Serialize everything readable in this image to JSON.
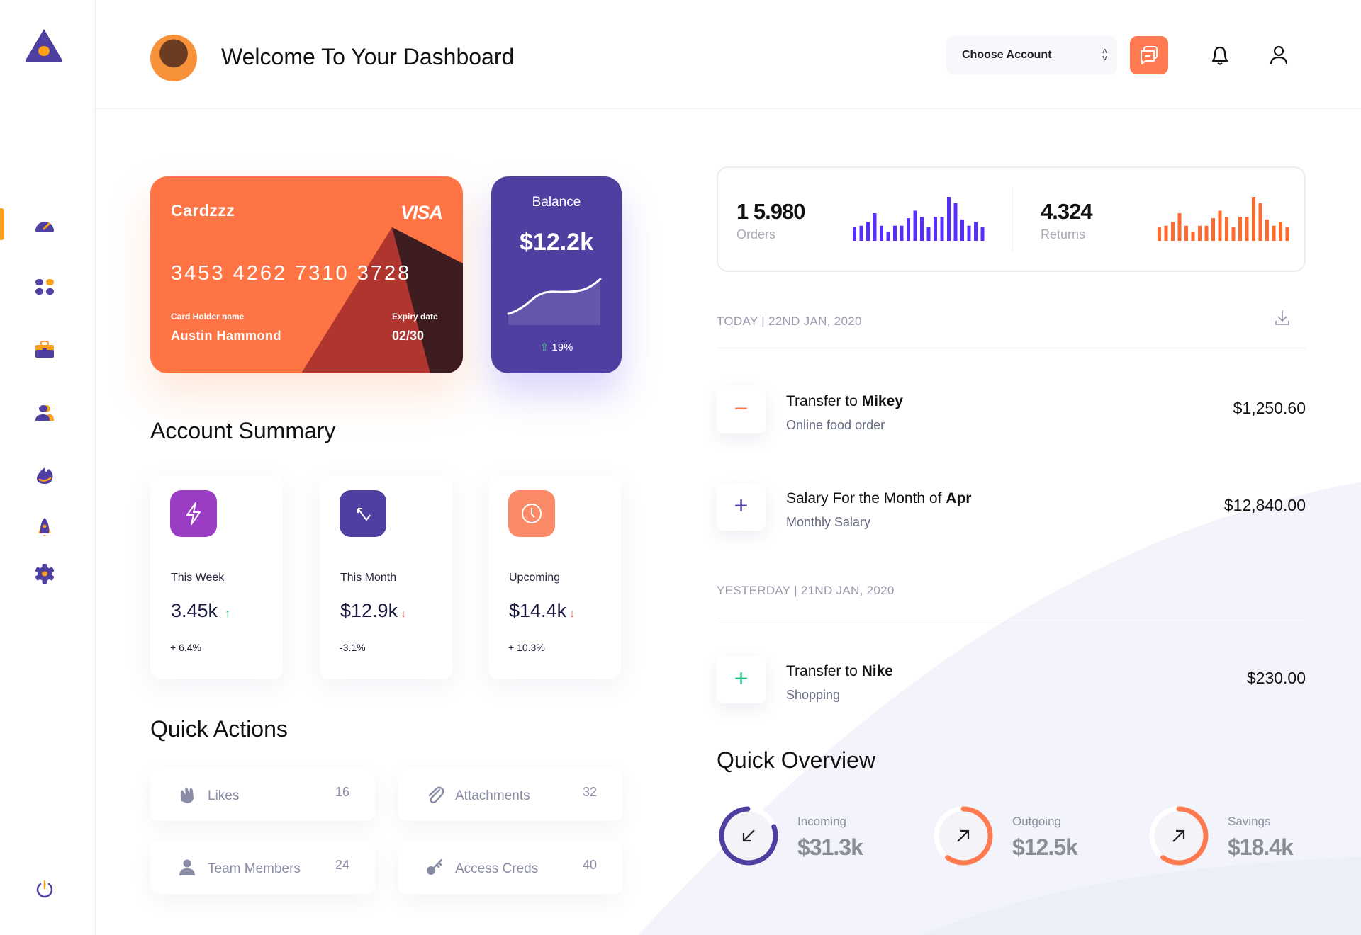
{
  "header": {
    "title": "Welcome To Your Dashboard",
    "account_select": "Choose Account"
  },
  "sidebar": {
    "items": [
      {
        "icon": "dashboard-gauge-icon",
        "active": true
      },
      {
        "icon": "apps-grid-icon"
      },
      {
        "icon": "briefcase-icon"
      },
      {
        "icon": "users-icon"
      },
      {
        "icon": "fire-icon"
      },
      {
        "icon": "rocket-icon"
      },
      {
        "icon": "settings-gear-icon"
      }
    ],
    "logout_icon": "power-icon"
  },
  "card": {
    "name": "Cardzzz",
    "brand": "VISA",
    "number": "3453 4262 7310 3728",
    "holder_label": "Card Holder name",
    "holder": "Austin Hammond",
    "expiry_label": "Expiry date",
    "expiry": "02/30"
  },
  "balance": {
    "label": "Balance",
    "value": "$12.2k",
    "change": "19%",
    "trend": "up"
  },
  "account_summary": {
    "title": "Account Summary",
    "items": [
      {
        "label": "This Week",
        "value": "3.45k",
        "change": "+ 6.4%",
        "trend": "up",
        "color": "#9b3dc4",
        "icon": "lightning-icon"
      },
      {
        "label": "This Month",
        "value": "$12.9k",
        "change": "-3.1%",
        "trend": "down",
        "color": "#4f3fa0",
        "icon": "arrow-up-left-down-icon"
      },
      {
        "label": "Upcoming",
        "value": "$14.4k",
        "change": "+ 10.3%",
        "trend": "down",
        "color": "#fb8a67",
        "icon": "clock-icon"
      }
    ]
  },
  "quick_actions": {
    "title": "Quick Actions",
    "items": [
      {
        "label": "Likes",
        "count": "16",
        "icon": "clap-hand-icon"
      },
      {
        "label": "Attachments",
        "count": "32",
        "icon": "paperclip-icon"
      },
      {
        "label": "Team Members",
        "count": "24",
        "icon": "user-icon"
      },
      {
        "label": "Access Creds",
        "count": "40",
        "icon": "key-icon"
      }
    ]
  },
  "stats": {
    "orders": {
      "value": "1 5.980",
      "label": "Orders",
      "color": "#5a2dff",
      "bars": [
        55,
        60,
        75,
        110,
        60,
        35,
        60,
        60,
        90,
        120,
        95,
        55,
        95,
        95,
        175,
        150,
        85,
        60,
        75,
        55
      ]
    },
    "returns": {
      "value": "4.324",
      "label": "Returns",
      "color": "#ff6a2e",
      "bars": [
        55,
        60,
        75,
        110,
        60,
        35,
        60,
        60,
        90,
        120,
        95,
        55,
        95,
        95,
        175,
        150,
        85,
        60,
        75,
        55
      ]
    }
  },
  "transactions": {
    "today_label": "TODAY | 22ND JAN, 2020",
    "yesterday_label": "YESTERDAY | 21ND JAN, 2020",
    "items": [
      {
        "title_prefix": "Transfer to ",
        "title_bold": "Mikey",
        "subtitle": "Online food order",
        "amount": "$1,250.60",
        "sign": "−",
        "sign_color": "#ff7a50"
      },
      {
        "title_prefix": "Salary For the Month of ",
        "title_bold": "Apr",
        "subtitle": "Monthly Salary",
        "amount": "$12,840.00",
        "sign": "+",
        "sign_color": "#4f3fa0"
      },
      {
        "title_prefix": "Transfer to ",
        "title_bold": "Nike",
        "subtitle": "Shopping",
        "amount": "$230.00",
        "sign": "+",
        "sign_color": "#2bc48a"
      }
    ]
  },
  "quick_overview": {
    "title": "Quick Overview",
    "items": [
      {
        "label": "Incoming",
        "value": "$31.3k",
        "fill": 0.8,
        "color": "#4f3fa0",
        "icon": "arrow-down-left-icon"
      },
      {
        "label": "Outgoing",
        "value": "$12.5k",
        "fill": 0.6,
        "color": "#ff7a50",
        "icon": "arrow-up-right-icon"
      },
      {
        "label": "Savings",
        "value": "$18.4k",
        "fill": 0.6,
        "color": "#ff7a50",
        "icon": "arrow-up-right-icon"
      }
    ]
  }
}
